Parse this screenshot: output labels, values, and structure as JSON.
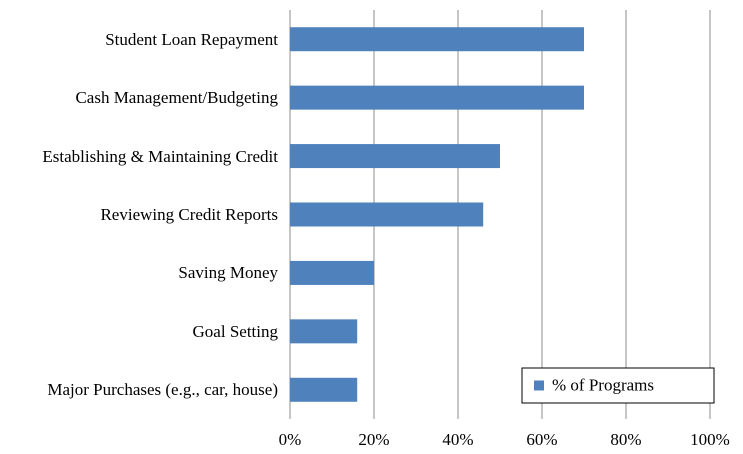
{
  "chart_data": {
    "type": "barh",
    "categories": [
      "Student Loan Repayment",
      "Cash Management/Budgeting",
      "Establishing & Maintaining Credit",
      "Reviewing Credit Reports",
      "Saving Money",
      "Goal Setting",
      "Major Purchases (e.g., car, house)"
    ],
    "series": [
      {
        "name": "% of Programs",
        "color": "#4f81bd",
        "values": [
          70,
          70,
          50,
          46,
          20,
          16,
          16
        ]
      }
    ],
    "xlim": [
      0,
      100
    ],
    "xticks": [
      {
        "value": 0,
        "label": "0%"
      },
      {
        "value": 20,
        "label": "20%"
      },
      {
        "value": 40,
        "label": "40%"
      },
      {
        "value": 60,
        "label": "60%"
      },
      {
        "value": 80,
        "label": "80%"
      },
      {
        "value": 100,
        "label": "100%"
      }
    ],
    "grid": true,
    "legend": "lower right"
  }
}
